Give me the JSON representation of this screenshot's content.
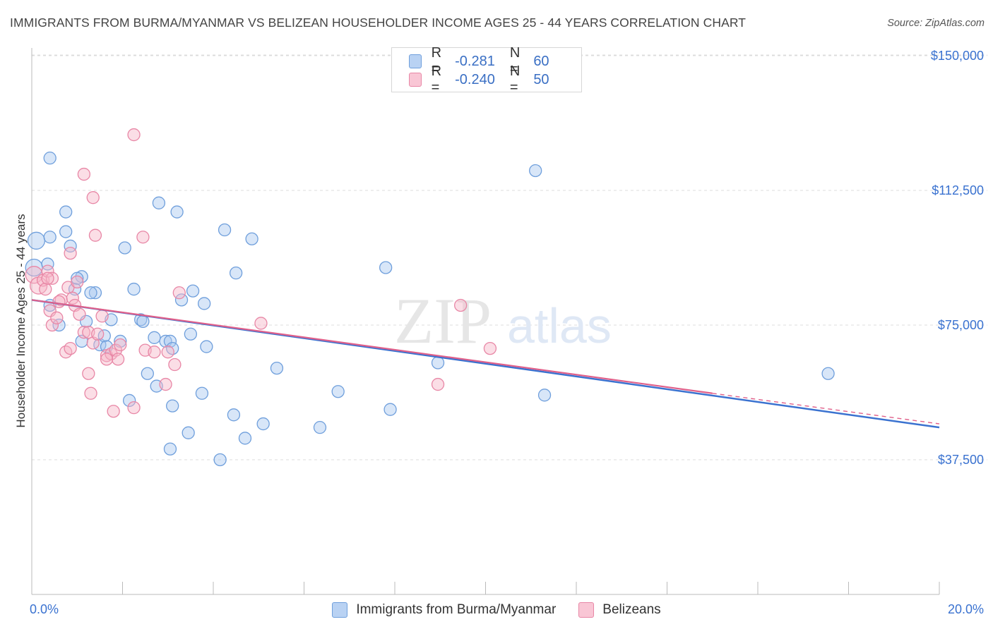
{
  "title": "IMMIGRANTS FROM BURMA/MYANMAR VS BELIZEAN HOUSEHOLDER INCOME AGES 25 - 44 YEARS CORRELATION CHART",
  "source": "Source: ZipAtlas.com",
  "watermark": {
    "zip": "ZIP",
    "atlas": "atlas"
  },
  "legend": {
    "series1": {
      "r_label": "R =",
      "r_value": "-0.281",
      "n_label": "N =",
      "n_value": "60"
    },
    "series2": {
      "r_label": "R =",
      "r_value": "-0.240",
      "n_label": "N =",
      "n_value": "50"
    }
  },
  "colors": {
    "blue_fill": "#a9c8f0",
    "blue_stroke": "#6f9fdc",
    "blue_line": "#3a72d0",
    "pink_fill": "#f6b5c8",
    "pink_stroke": "#e887a6",
    "pink_line": "#e0608a",
    "axis_text": "#3a72d0",
    "grid": "#dcdcdc"
  },
  "chart_data": {
    "type": "scatter",
    "title": "IMMIGRANTS FROM BURMA/MYANMAR VS BELIZEAN HOUSEHOLDER INCOME AGES 25 - 44 YEARS CORRELATION CHART",
    "xlabel": "",
    "ylabel": "Householder Income Ages 25 - 44 years",
    "xlim": [
      0,
      20
    ],
    "ylim": [
      0,
      157000
    ],
    "x_tick_labels": [
      "0.0%",
      "20.0%"
    ],
    "y_ticks": [
      {
        "value": 37500,
        "label": "$37,500"
      },
      {
        "value": 75000,
        "label": "$75,000"
      },
      {
        "value": 112500,
        "label": "$112,500"
      },
      {
        "value": 150000,
        "label": "$150,000"
      }
    ],
    "series": [
      {
        "name": "Immigrants from Burma/Myanmar",
        "color": "blue",
        "trend": {
          "x": [
            0,
            20
          ],
          "y": [
            82000,
            46500
          ]
        },
        "points": [
          [
            0.05,
            91000
          ],
          [
            0.1,
            98500
          ],
          [
            0.35,
            92000
          ],
          [
            0.4,
            99500
          ],
          [
            0.75,
            106500
          ],
          [
            0.75,
            101000
          ],
          [
            0.85,
            97000
          ],
          [
            0.4,
            80500
          ],
          [
            0.6,
            75000
          ],
          [
            1.1,
            88500
          ],
          [
            0.95,
            85000
          ],
          [
            1.0,
            88000
          ],
          [
            1.4,
            84000
          ],
          [
            1.3,
            84000
          ],
          [
            1.2,
            76000
          ],
          [
            1.1,
            70500
          ],
          [
            1.5,
            69500
          ],
          [
            1.6,
            72000
          ],
          [
            1.75,
            76500
          ],
          [
            1.65,
            69000
          ],
          [
            1.95,
            70500
          ],
          [
            2.05,
            96500
          ],
          [
            2.25,
            85000
          ],
          [
            2.4,
            76500
          ],
          [
            2.55,
            61500
          ],
          [
            2.7,
            71500
          ],
          [
            2.95,
            70500
          ],
          [
            2.75,
            58000
          ],
          [
            3.05,
            70500
          ],
          [
            3.1,
            68500
          ],
          [
            2.15,
            54000
          ],
          [
            0.4,
            121500
          ],
          [
            2.8,
            109000
          ],
          [
            3.2,
            106500
          ],
          [
            4.25,
            101500
          ],
          [
            4.85,
            99000
          ],
          [
            4.5,
            89500
          ],
          [
            3.3,
            82000
          ],
          [
            3.55,
            84500
          ],
          [
            3.8,
            81000
          ],
          [
            3.5,
            72500
          ],
          [
            3.85,
            69000
          ],
          [
            3.75,
            56000
          ],
          [
            3.1,
            52500
          ],
          [
            3.45,
            45000
          ],
          [
            3.05,
            40500
          ],
          [
            4.15,
            37500
          ],
          [
            4.45,
            50000
          ],
          [
            4.7,
            43500
          ],
          [
            5.1,
            47500
          ],
          [
            5.4,
            63000
          ],
          [
            6.75,
            56500
          ],
          [
            6.35,
            46500
          ],
          [
            7.8,
            91000
          ],
          [
            7.9,
            51500
          ],
          [
            8.95,
            64500
          ],
          [
            11.3,
            55500
          ],
          [
            11.1,
            118000
          ],
          [
            17.55,
            61500
          ],
          [
            2.45,
            76000
          ]
        ]
      },
      {
        "name": "Belizeans",
        "color": "pink",
        "trend": {
          "x": [
            0,
            15
          ],
          "y": [
            82000,
            56000
          ],
          "dashed_extension": {
            "x": [
              15,
              20
            ],
            "y": [
              56000,
              47500
            ]
          }
        },
        "points": [
          [
            0.05,
            89000
          ],
          [
            0.15,
            86000
          ],
          [
            0.25,
            87500
          ],
          [
            0.3,
            85000
          ],
          [
            0.35,
            90000
          ],
          [
            0.45,
            88000
          ],
          [
            0.4,
            79000
          ],
          [
            0.45,
            75000
          ],
          [
            0.55,
            77000
          ],
          [
            0.65,
            82000
          ],
          [
            0.6,
            81500
          ],
          [
            0.8,
            85500
          ],
          [
            0.9,
            82500
          ],
          [
            0.95,
            80500
          ],
          [
            1.05,
            78000
          ],
          [
            1.15,
            73000
          ],
          [
            0.75,
            67500
          ],
          [
            0.85,
            68500
          ],
          [
            1.25,
            73000
          ],
          [
            1.35,
            70000
          ],
          [
            1.25,
            61500
          ],
          [
            1.3,
            56000
          ],
          [
            1.45,
            72500
          ],
          [
            1.55,
            77500
          ],
          [
            1.65,
            66500
          ],
          [
            1.75,
            67000
          ],
          [
            1.85,
            68000
          ],
          [
            1.9,
            65500
          ],
          [
            1.95,
            69500
          ],
          [
            1.8,
            51000
          ],
          [
            2.25,
            52000
          ],
          [
            2.5,
            68000
          ],
          [
            2.7,
            67500
          ],
          [
            2.95,
            58500
          ],
          [
            3.0,
            67500
          ],
          [
            3.15,
            64000
          ],
          [
            3.25,
            84000
          ],
          [
            1.15,
            117000
          ],
          [
            1.35,
            110500
          ],
          [
            1.4,
            100000
          ],
          [
            2.25,
            128000
          ],
          [
            2.45,
            99500
          ],
          [
            0.85,
            95000
          ],
          [
            1.0,
            87000
          ],
          [
            5.05,
            75500
          ],
          [
            8.95,
            58500
          ],
          [
            9.45,
            80500
          ],
          [
            10.1,
            68500
          ],
          [
            0.35,
            88000
          ],
          [
            1.65,
            65500
          ]
        ]
      }
    ]
  }
}
